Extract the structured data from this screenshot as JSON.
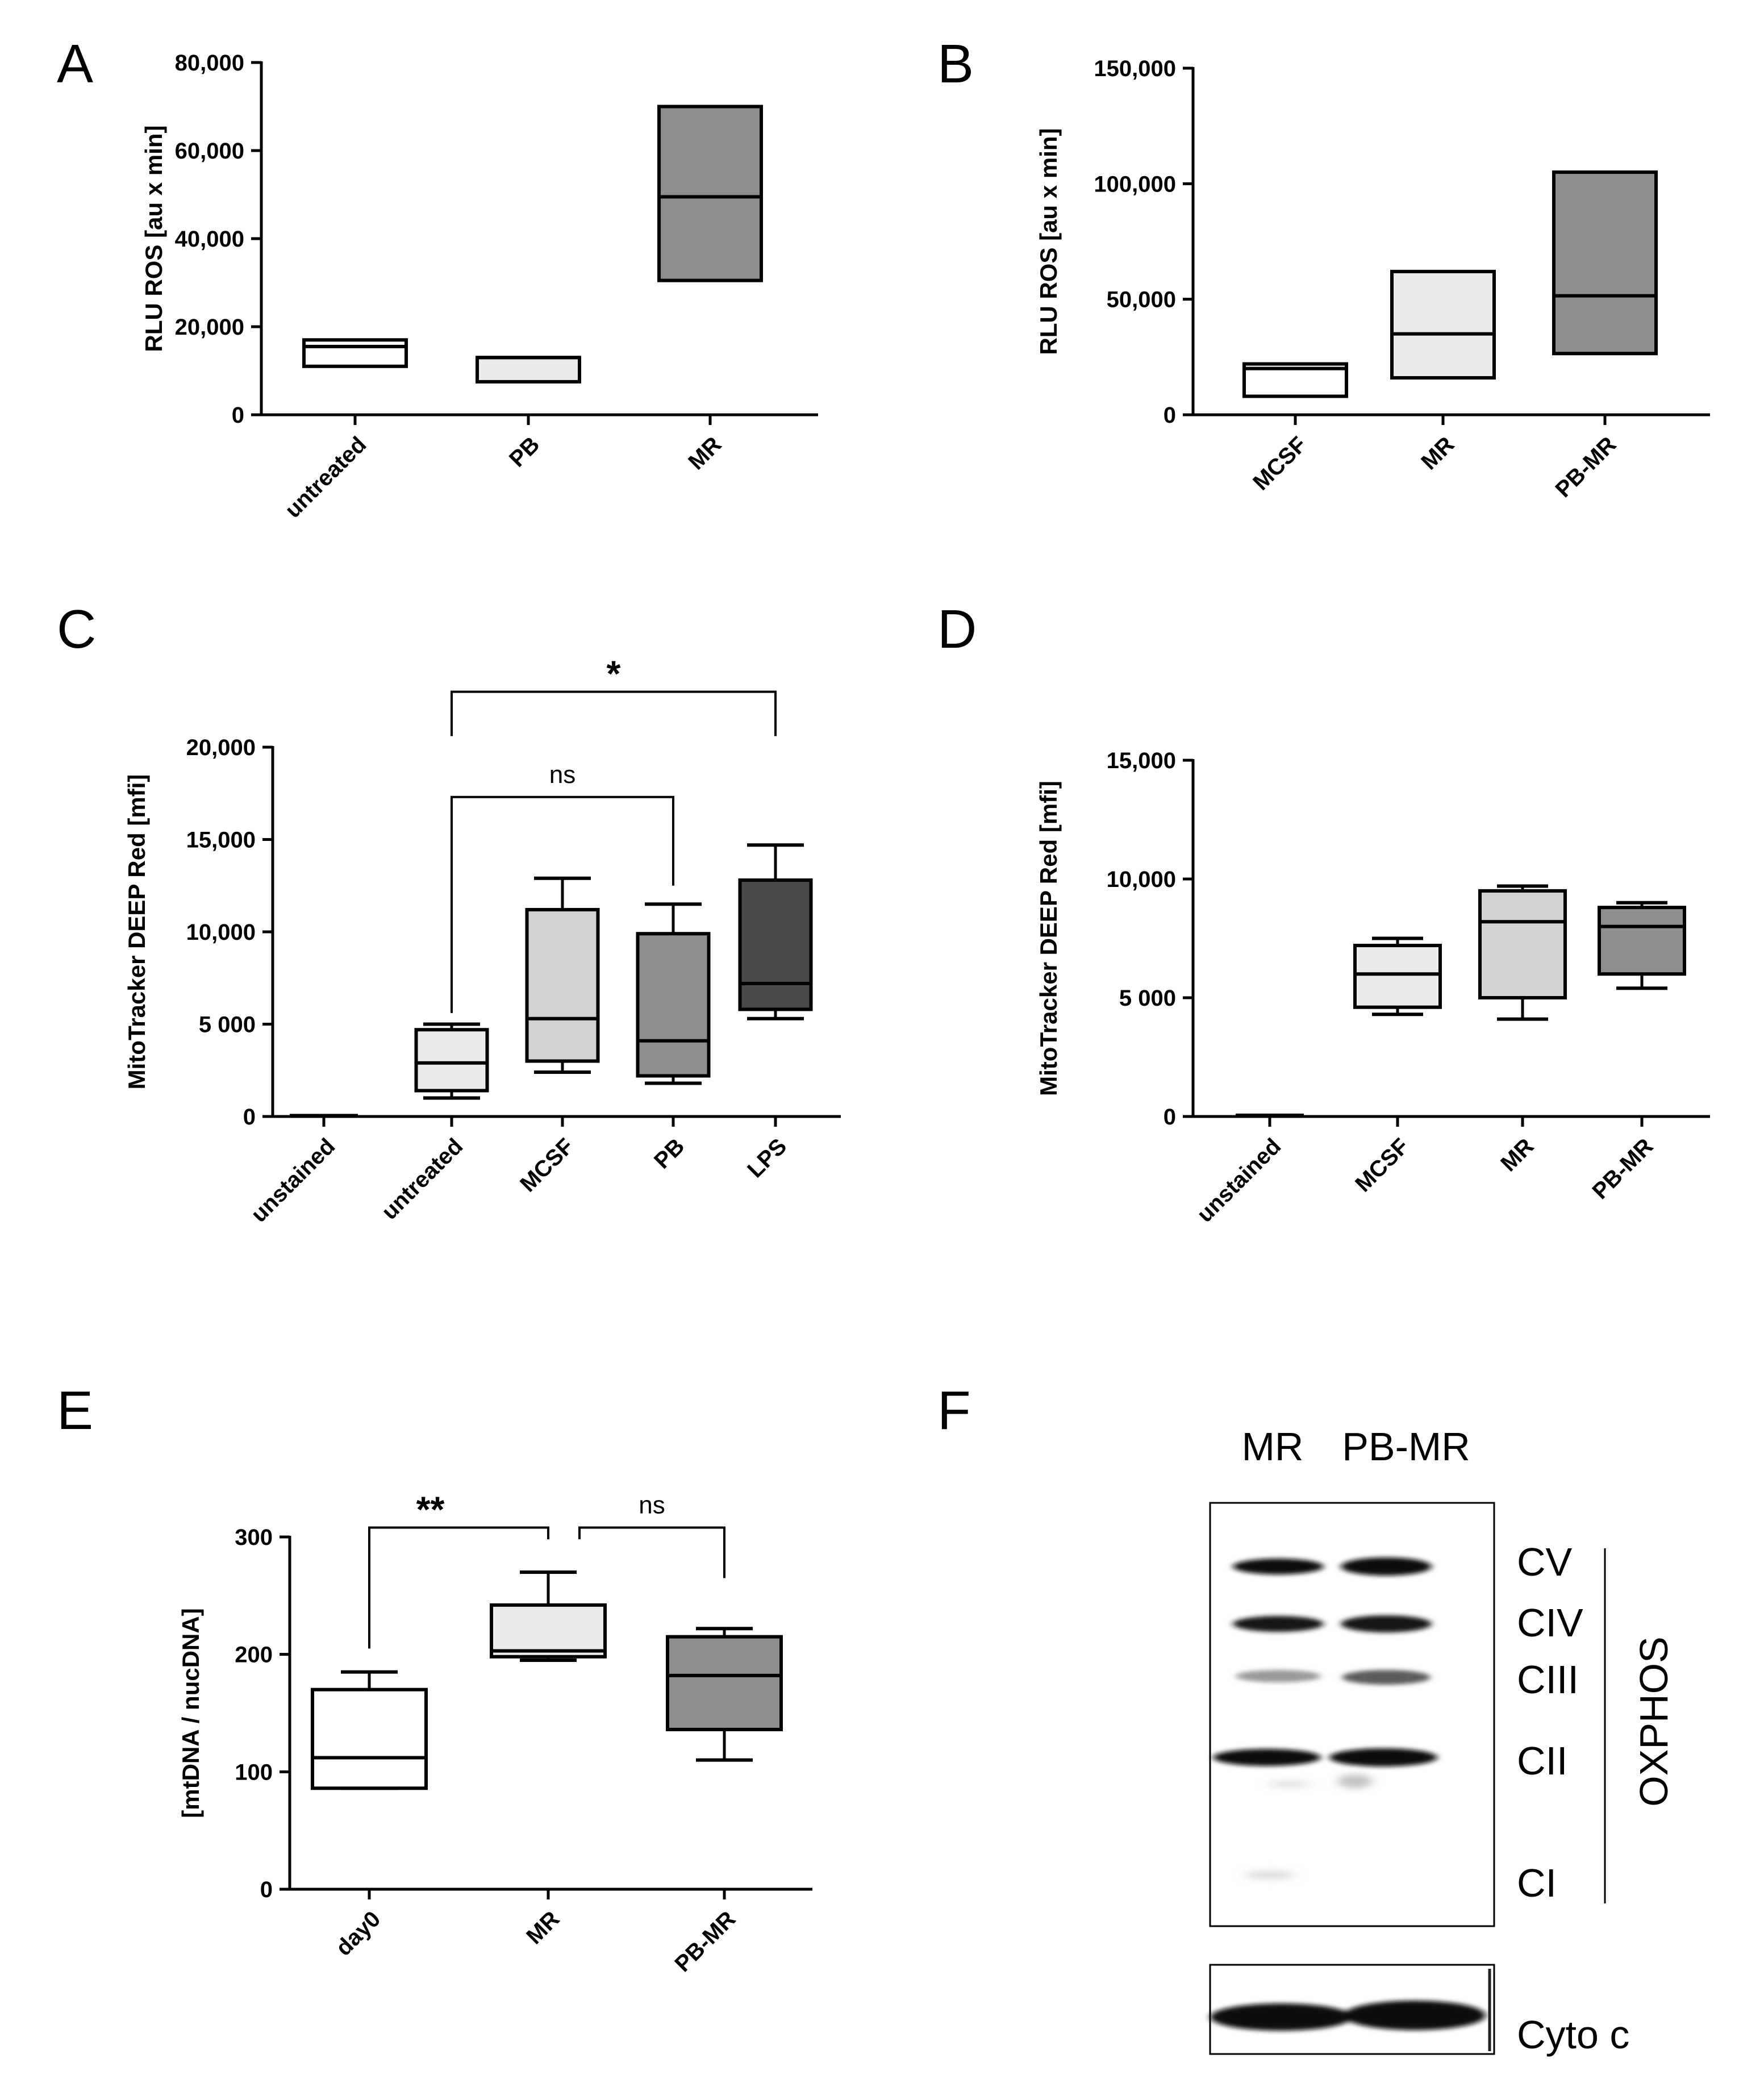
{
  "figure": {
    "panel_letters": [
      "A",
      "B",
      "C",
      "D",
      "E",
      "F"
    ]
  },
  "colors": {
    "white": "#ffffff",
    "light": "#ebebeb",
    "mid_light": "#d2d2d2",
    "mid": "#8e8e8e",
    "dark": "#4a4a4a"
  },
  "chart_data": [
    {
      "panel": "A",
      "type": "box",
      "ylabel": "RLU ROS [au x min]",
      "ylim": [
        0,
        80000
      ],
      "yticks": [
        0,
        20000,
        40000,
        60000,
        80000
      ],
      "ytick_labels": [
        "0",
        "20,000",
        "40,000",
        "60,000",
        "80,000"
      ],
      "categories": [
        "untreated",
        "PB",
        "MR"
      ],
      "boxes": [
        {
          "q1": 11000,
          "median": 15500,
          "q3": 17000,
          "fill": "white"
        },
        {
          "q1": 7500,
          "median": 13000,
          "q3": 13000,
          "fill": "light"
        },
        {
          "q1": 30500,
          "median": 49500,
          "q3": 70000,
          "fill": "mid"
        }
      ],
      "brackets": []
    },
    {
      "panel": "B",
      "type": "box",
      "ylabel": "RLU ROS [au x min]",
      "ylim": [
        0,
        150000
      ],
      "yticks": [
        0,
        50000,
        100000,
        150000
      ],
      "ytick_labels": [
        "0",
        "50,000",
        "100,000",
        "150,000"
      ],
      "categories": [
        "MCSF",
        "MR",
        "PB-MR"
      ],
      "boxes": [
        {
          "q1": 8000,
          "median": 20000,
          "q3": 22000,
          "fill": "white"
        },
        {
          "q1": 16000,
          "median": 35000,
          "q3": 62000,
          "fill": "light"
        },
        {
          "q1": 26500,
          "median": 51500,
          "q3": 105000,
          "fill": "mid"
        }
      ],
      "brackets": []
    },
    {
      "panel": "C",
      "type": "box",
      "ylabel": "MitoTracker DEEP Red [mfi]",
      "ylim": [
        0,
        20000
      ],
      "yticks": [
        0,
        5000,
        10000,
        15000,
        20000
      ],
      "ytick_labels": [
        "0",
        "5 000",
        "10,000",
        "15,000",
        "20,000"
      ],
      "categories": [
        "unstained",
        "untreated",
        "MCSF",
        "PB",
        "LPS"
      ],
      "boxes": [
        {
          "min": 50,
          "q1": 50,
          "median": 50,
          "q3": 50,
          "max": 50,
          "fill": "white",
          "flat": true
        },
        {
          "min": 1000,
          "q1": 1400,
          "median": 2900,
          "q3": 4700,
          "max": 5000,
          "fill": "light"
        },
        {
          "min": 2400,
          "q1": 3000,
          "median": 5300,
          "q3": 11200,
          "max": 12900,
          "fill": "mid_light"
        },
        {
          "min": 1800,
          "q1": 2200,
          "median": 4100,
          "q3": 9900,
          "max": 11500,
          "fill": "mid"
        },
        {
          "min": 5300,
          "q1": 5800,
          "median": 7200,
          "q3": 12800,
          "max": 14700,
          "fill": "dark"
        }
      ],
      "brackets": [
        {
          "from": 1,
          "to": 3,
          "label": "ns",
          "level": 17300,
          "from_drop": 5600,
          "to_drop": 12500,
          "star": false
        },
        {
          "from": 1,
          "to": 4,
          "label": "*",
          "level": 23000,
          "from_drop": 20600,
          "to_drop": 20600,
          "star": true
        }
      ]
    },
    {
      "panel": "D",
      "type": "box",
      "ylabel": "MitoTracker DEEP Red [mfi]",
      "ylim": [
        0,
        15000
      ],
      "yticks": [
        0,
        5000,
        10000,
        15000
      ],
      "ytick_labels": [
        "0",
        "5 000",
        "10,000",
        "15,000"
      ],
      "categories": [
        "unstained",
        "MCSF",
        "MR",
        "PB-MR"
      ],
      "boxes": [
        {
          "min": 50,
          "q1": 50,
          "median": 50,
          "q3": 50,
          "max": 50,
          "fill": "white",
          "flat": true
        },
        {
          "min": 4300,
          "q1": 4600,
          "median": 6000,
          "q3": 7200,
          "max": 7500,
          "fill": "light"
        },
        {
          "min": 4100,
          "q1": 5000,
          "median": 8200,
          "q3": 9500,
          "max": 9700,
          "fill": "mid_light"
        },
        {
          "min": 5400,
          "q1": 6000,
          "median": 8000,
          "q3": 8800,
          "max": 9000,
          "fill": "mid"
        }
      ],
      "brackets": []
    },
    {
      "panel": "E",
      "type": "box",
      "ylabel": "[mtDNA / nucDNA]",
      "ylim": [
        0,
        300
      ],
      "yticks": [
        0,
        100,
        200,
        300
      ],
      "ytick_labels": [
        "0",
        "100",
        "200",
        "300"
      ],
      "categories": [
        "day0",
        "MR",
        "PB-MR"
      ],
      "boxes": [
        {
          "min": 86,
          "q1": 86,
          "median": 112,
          "q3": 170,
          "max": 185,
          "fill": "white"
        },
        {
          "min": 195,
          "q1": 198,
          "median": 203,
          "q3": 242,
          "max": 270,
          "fill": "light"
        },
        {
          "min": 110,
          "q1": 136,
          "median": 182,
          "q3": 215,
          "max": 222,
          "fill": "mid"
        }
      ],
      "brackets": [
        {
          "from": 0,
          "to": 1,
          "label": "**",
          "level": 308,
          "from_drop": 205,
          "to_drop": 298,
          "star": true,
          "side": "left"
        },
        {
          "from": 1,
          "to": 2,
          "label": "ns",
          "level": 308,
          "from_drop": 298,
          "to_drop": 265,
          "star": false,
          "side": "right"
        }
      ]
    }
  ],
  "blot": {
    "lanes": [
      "MR",
      "PB-MR"
    ],
    "bands": [
      "CV",
      "CIV",
      "CIII",
      "CII",
      "CI"
    ],
    "group_label": "OXPHOS",
    "loading_label": "Cyto c"
  }
}
